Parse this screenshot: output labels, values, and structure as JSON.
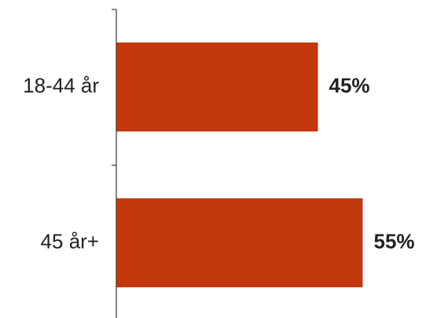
{
  "chart_data": {
    "type": "bar",
    "orientation": "horizontal",
    "categories": [
      "18-44 år",
      "45 år+"
    ],
    "values": [
      45,
      55
    ],
    "value_labels": [
      "45%",
      "55%"
    ],
    "title": "",
    "xlabel": "",
    "ylabel": "",
    "xlim": [
      0,
      70
    ],
    "grid": false,
    "legend": "none",
    "colors": {
      "bar": "#C4380E",
      "axis": "#333333",
      "text": "#222222"
    }
  }
}
